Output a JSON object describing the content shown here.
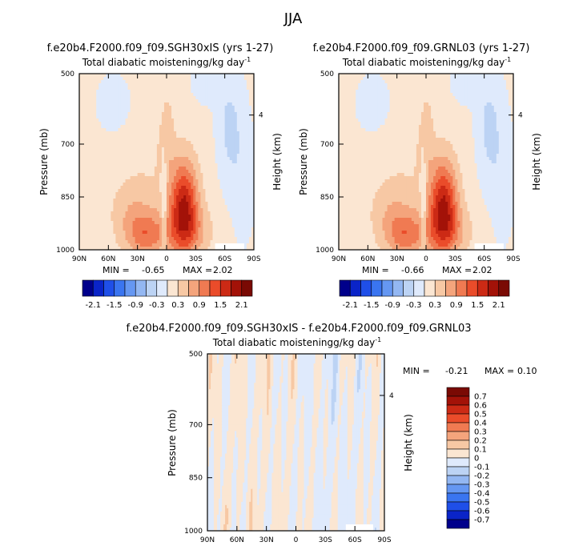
{
  "figure": {
    "title": "JJA"
  },
  "chart_data": [
    {
      "id": "panel-a",
      "type": "heatmap",
      "title": "f.e20b4.F2000.f09_f09.SGH30xIS (yrs 1-27)",
      "subtitle_main": "Total diabatic moistening",
      "subtitle_units": "g/kg day",
      "subtitle_exp": "-1",
      "ylabel": "Pressure (mb)",
      "ylabel_right": "Height (km)",
      "x_ticks": [
        "90N",
        "60N",
        "30N",
        "0",
        "30S",
        "60S",
        "90S"
      ],
      "y_ticks": [
        "500",
        "700",
        "850",
        "1000"
      ],
      "y_right_ticks": [
        "4"
      ],
      "xlim": [
        90,
        -90
      ],
      "ylim": [
        500,
        1000
      ],
      "min_label": "MIN =",
      "min_value": "-0.65",
      "max_label": "MAX =",
      "max_value": "2.02",
      "colorbar": {
        "orientation": "horizontal",
        "levels": [
          -2.1,
          -1.8,
          -1.5,
          -1.2,
          -0.9,
          -0.6,
          -0.3,
          0,
          0.3,
          0.6,
          0.9,
          1.2,
          1.5,
          1.8,
          2.1
        ],
        "tick_labels": [
          "-2.1",
          "-1.5",
          "-0.9",
          "-0.3",
          "0.3",
          "0.9",
          "1.5",
          "2.1"
        ]
      }
    },
    {
      "id": "panel-b",
      "type": "heatmap",
      "title": "f.e20b4.F2000.f09_f09.GRNL03 (yrs 1-27)",
      "subtitle_main": "Total diabatic moistening",
      "subtitle_units": "g/kg day",
      "subtitle_exp": "-1",
      "ylabel": "Pressure (mb)",
      "ylabel_right": "Height (km)",
      "x_ticks": [
        "90N",
        "60N",
        "30N",
        "0",
        "30S",
        "60S",
        "90S"
      ],
      "y_ticks": [
        "500",
        "700",
        "850",
        "1000"
      ],
      "y_right_ticks": [
        "4"
      ],
      "xlim": [
        90,
        -90
      ],
      "ylim": [
        500,
        1000
      ],
      "min_label": "MIN =",
      "min_value": "-0.66",
      "max_label": "MAX =",
      "max_value": "2.02",
      "colorbar": {
        "orientation": "horizontal",
        "levels": [
          -2.1,
          -1.8,
          -1.5,
          -1.2,
          -0.9,
          -0.6,
          -0.3,
          0,
          0.3,
          0.6,
          0.9,
          1.2,
          1.5,
          1.8,
          2.1
        ],
        "tick_labels": [
          "-2.1",
          "-1.5",
          "-0.9",
          "-0.3",
          "0.3",
          "0.9",
          "1.5",
          "2.1"
        ]
      }
    },
    {
      "id": "panel-c",
      "type": "heatmap",
      "title": "f.e20b4.F2000.f09_f09.SGH30xIS - f.e20b4.F2000.f09_f09.GRNL03",
      "subtitle_main": "Total diabatic moistening",
      "subtitle_units": "g/kg day",
      "subtitle_exp": "-1",
      "ylabel": "Pressure (mb)",
      "ylabel_right": "Height (km)",
      "x_ticks": [
        "90N",
        "60N",
        "30N",
        "0",
        "30S",
        "60S",
        "90S"
      ],
      "y_ticks": [
        "500",
        "700",
        "850",
        "1000"
      ],
      "y_right_ticks": [
        "4"
      ],
      "xlim": [
        90,
        -90
      ],
      "ylim": [
        500,
        1000
      ],
      "min_label": "MIN =",
      "min_value": "-0.21",
      "max_label": "MAX =",
      "max_value": "0.10",
      "colorbar": {
        "orientation": "vertical",
        "levels": [
          -0.7,
          -0.6,
          -0.5,
          -0.4,
          -0.3,
          -0.2,
          -0.1,
          0,
          0.1,
          0.2,
          0.3,
          0.4,
          0.5,
          0.6,
          0.7
        ],
        "tick_labels": [
          "0.7",
          "0.6",
          "0.5",
          "0.4",
          "0.3",
          "0.2",
          "0.1",
          "0",
          "-0.1",
          "-0.2",
          "-0.3",
          "-0.4",
          "-0.5",
          "-0.6",
          "-0.7"
        ]
      }
    }
  ],
  "palette": [
    "#00008b",
    "#0a24c8",
    "#1f4fe8",
    "#3a75f0",
    "#6597f2",
    "#93b7f2",
    "#bcd3f4",
    "#dfeafc",
    "#fbe6d2",
    "#f7c8a4",
    "#f4a47c",
    "#f07a52",
    "#ea4c2a",
    "#cc2a15",
    "#a31208",
    "#7a0a04"
  ]
}
